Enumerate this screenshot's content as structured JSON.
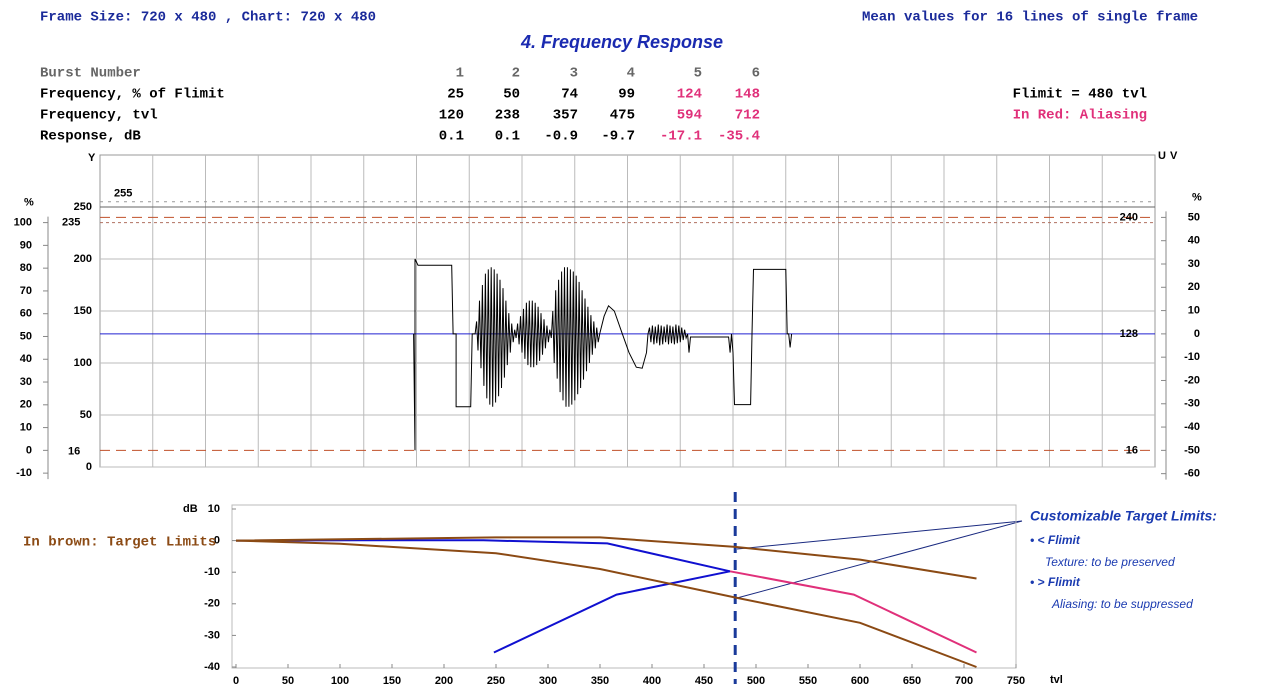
{
  "header": {
    "frame_size": "Frame Size:  720 x 480 , Chart:  720 x 480",
    "mean": "Mean values for 16 lines of single frame",
    "title": "4. Frequency Response"
  },
  "table": {
    "rows": [
      {
        "label": "Burst Number",
        "values": [
          1,
          2,
          3,
          4,
          5,
          6
        ]
      },
      {
        "label": "Frequency, % of Flimit",
        "values": [
          25,
          50,
          74,
          99,
          124,
          148
        ]
      },
      {
        "label": "Frequency, tvl",
        "values": [
          120,
          238,
          357,
          475,
          594,
          712
        ]
      },
      {
        "label": "Response,  dB",
        "values": [
          0.1,
          0.1,
          -0.9,
          -9.7,
          -17.1,
          -35.4
        ]
      }
    ],
    "flimit": "Flimit =  480 tvl",
    "aliasing_note": "In Red: Aliasing",
    "aliasing_color": "#e0307a"
  },
  "chart_data": [
    {
      "type": "line",
      "ylabel": "Y",
      "xlim": [
        0,
        720
      ],
      "ylim": [
        0,
        300
      ],
      "yticks": [
        0,
        50,
        100,
        150,
        200,
        250
      ],
      "grid": true,
      "legend": [
        {
          "name": "U",
          "color": "#2020d0"
        },
        {
          "name": "V",
          "color": "#d02020"
        }
      ],
      "reference_lines": [
        {
          "value": 255,
          "side": "left",
          "color": "#999999",
          "dash": "3,5"
        },
        {
          "value": 235,
          "side": "left",
          "color": "#b07060",
          "dash": "3,3"
        },
        {
          "value": 240,
          "side": "right",
          "color": "#c0502a",
          "dash": "10,6"
        },
        {
          "value": 128,
          "side": "right",
          "color": "#2020d0",
          "dash": ""
        },
        {
          "value": 16,
          "side": "both",
          "color": "#c0502a",
          "dash": "10,6"
        }
      ],
      "left_axis": {
        "label": "%",
        "ticks": [
          -10,
          0,
          10,
          20,
          30,
          40,
          50,
          60,
          70,
          80,
          90,
          100
        ],
        "map": [
          [
            0,
            16
          ],
          [
            100,
            235
          ]
        ]
      },
      "right_axis": {
        "label": "%",
        "ticks": [
          -60,
          -50,
          -40,
          -30,
          -20,
          -10,
          0,
          10,
          20,
          30,
          40,
          50
        ],
        "map": [
          [
            -50,
            16
          ],
          [
            50,
            240
          ]
        ]
      },
      "series": [
        {
          "color": "#000000",
          "x": [
            214,
            215,
            215,
            217,
            240,
            241,
            243,
            243,
            253,
            254,
            256,
            257,
            258,
            259,
            260,
            261,
            262,
            263,
            264,
            265,
            266,
            267,
            268,
            269,
            270,
            271,
            272,
            273,
            274,
            275,
            276,
            277,
            278,
            279,
            280,
            281,
            282,
            283,
            284,
            285,
            286,
            287,
            288,
            289,
            290,
            291,
            292,
            293,
            294,
            295,
            296,
            297,
            298,
            299,
            300,
            301,
            302,
            303,
            304,
            305,
            306,
            307,
            308,
            309,
            310,
            311,
            312,
            313,
            314,
            315,
            316,
            317,
            318,
            319,
            320,
            321,
            322,
            323,
            324,
            325,
            326,
            327,
            328,
            329,
            330,
            331,
            332,
            333,
            334,
            335,
            336,
            337,
            338,
            339,
            340,
            341,
            344,
            347,
            351,
            356,
            361,
            366,
            370,
            373,
            374,
            375,
            376,
            377,
            378,
            379,
            380,
            381,
            382,
            383,
            384,
            385,
            386,
            387,
            388,
            389,
            390,
            391,
            392,
            393,
            394,
            395,
            396,
            397,
            398,
            399,
            400,
            401,
            402,
            403,
            428,
            429,
            430,
            431,
            432,
            433,
            444,
            445,
            446,
            468,
            469,
            470,
            471,
            472
          ],
          "values": [
            128,
            16,
            200,
            194,
            194,
            128,
            128,
            58,
            58,
            128,
            128,
            140,
            112,
            160,
            95,
            175,
            78,
            186,
            66,
            190,
            60,
            192,
            58,
            190,
            62,
            186,
            68,
            180,
            76,
            172,
            86,
            160,
            98,
            148,
            110,
            138,
            120,
            132,
            124,
            138,
            118,
            145,
            110,
            152,
            104,
            158,
            98,
            160,
            96,
            160,
            96,
            158,
            98,
            154,
            102,
            148,
            108,
            142,
            114,
            136,
            120,
            132,
            124,
            150,
            100,
            170,
            85,
            180,
            72,
            188,
            64,
            192,
            58,
            192,
            58,
            190,
            60,
            188,
            64,
            184,
            70,
            178,
            76,
            170,
            84,
            162,
            92,
            154,
            100,
            146,
            108,
            140,
            114,
            134,
            120,
            128,
            145,
            155,
            150,
            130,
            110,
            96,
            95,
            110,
            128,
            134,
            120,
            136,
            118,
            135,
            119,
            137,
            117,
            136,
            118,
            135,
            120,
            137,
            118,
            136,
            119,
            135,
            118,
            137,
            119,
            136,
            120,
            134,
            122,
            132,
            124,
            128,
            110,
            125,
            125,
            125,
            110,
            128,
            110,
            60,
            60,
            128,
            190,
            190,
            128,
            128,
            115,
            128
          ]
        }
      ]
    },
    {
      "type": "line",
      "ylabel": "dB",
      "xlabel": "tvl",
      "xlim": [
        0,
        750
      ],
      "xticks": [
        0,
        50,
        100,
        150,
        200,
        250,
        300,
        350,
        400,
        450,
        500,
        550,
        600,
        650,
        700,
        750
      ],
      "ylim": [
        -40,
        10
      ],
      "yticks": [
        -40,
        -30,
        -20,
        -10,
        0,
        10
      ],
      "flimit": 480,
      "flimit_color": "#1a3a9a",
      "note": "In brown: Target Limits",
      "note_color": "#8b4a14",
      "annotations": {
        "title": "Customizable Target Limits:",
        "below": "• < Flimit",
        "below_text": "Texture: to be preserved",
        "above": "• > Flimit",
        "above_text": "Aliasing: to be suppressed"
      },
      "series": [
        {
          "color": "#1010d0",
          "x": [
            0,
            120,
            238,
            357,
            475
          ],
          "values": [
            0,
            0.1,
            0.1,
            -0.9,
            -9.7
          ]
        },
        {
          "color": "#e0307a",
          "x": [
            475,
            594,
            712
          ],
          "values": [
            -9.7,
            -17.1,
            -35.4
          ]
        },
        {
          "color": "#1010d0",
          "x": [
            248,
            366,
            475
          ],
          "values": [
            -35.4,
            -17.1,
            -9.7
          ]
        },
        {
          "color": "#8b4a14",
          "x": [
            0,
            250,
            350,
            480,
            600,
            712
          ],
          "values": [
            0,
            1,
            1,
            -2,
            -6,
            -12
          ]
        },
        {
          "color": "#8b4a14",
          "x": [
            0,
            100,
            250,
            350,
            480,
            600,
            712
          ],
          "values": [
            0,
            -1,
            -4,
            -9,
            -18,
            -26,
            -40
          ]
        }
      ]
    }
  ]
}
